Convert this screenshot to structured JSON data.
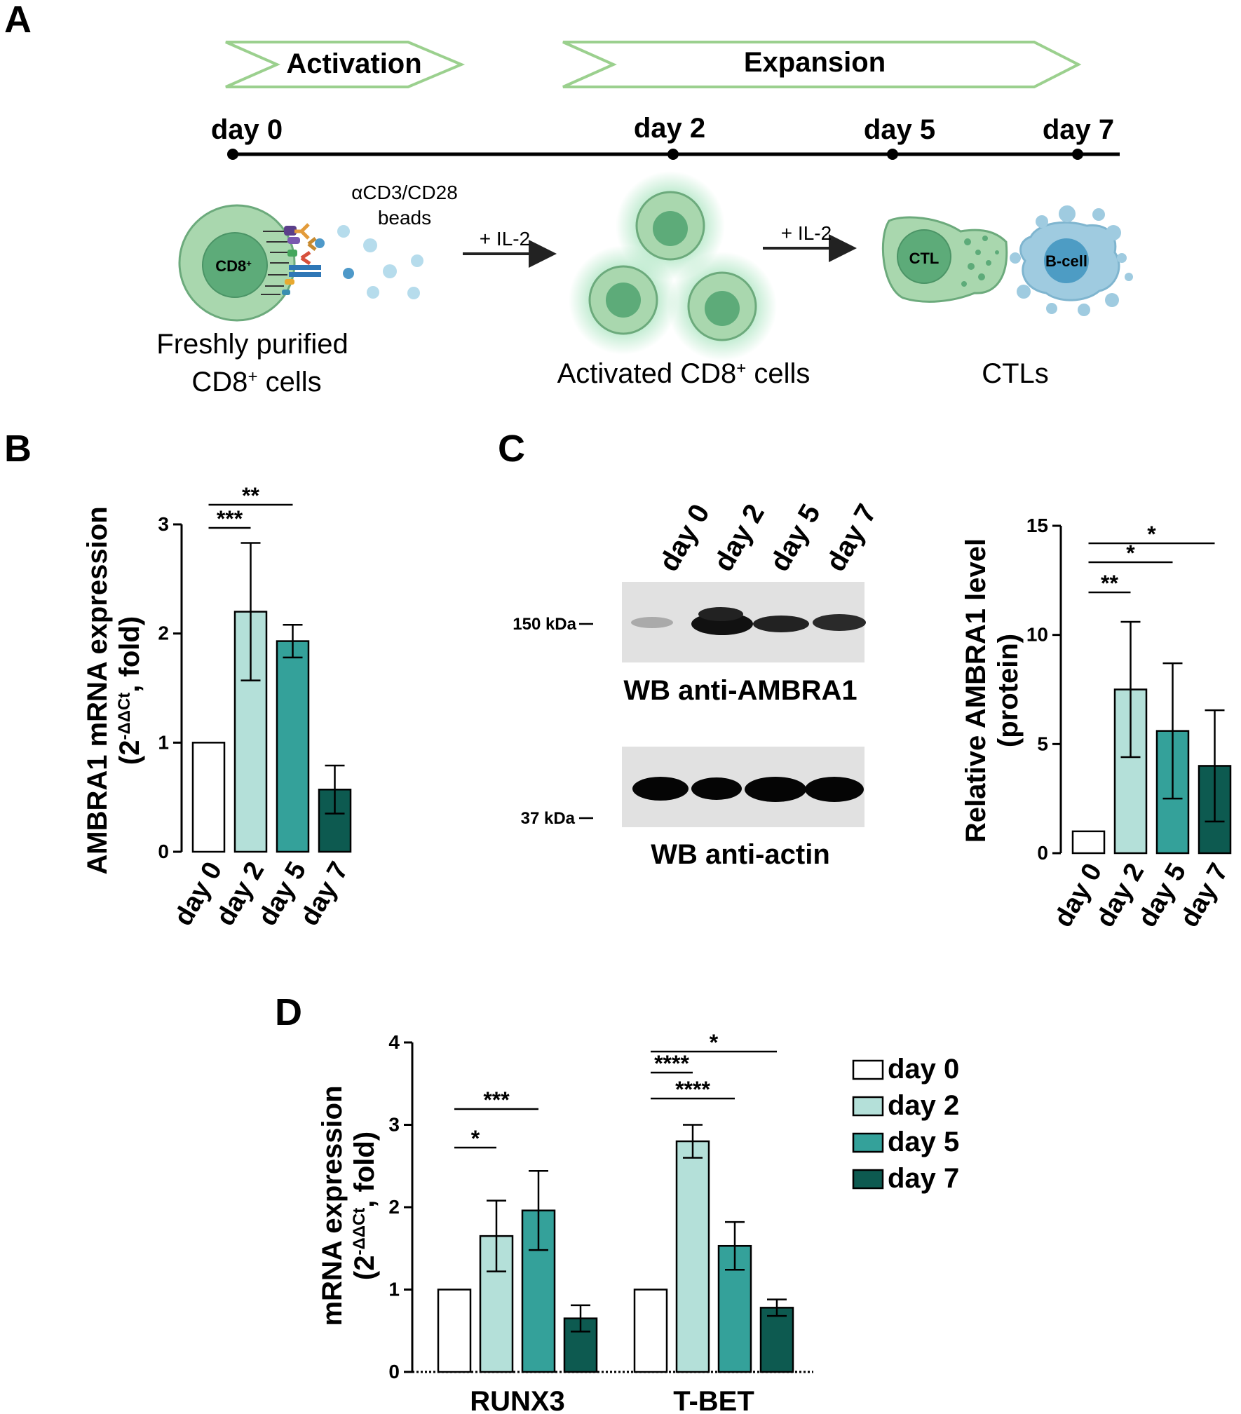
{
  "colors": {
    "day0": "#ffffff",
    "day2": "#b4e0d9",
    "day5": "#34a19a",
    "day7": "#0d5a50",
    "arrow_stroke": "#9bd08e",
    "cell_light": "#a9d7ae",
    "cell_dark": "#5dab79",
    "cell_outline": "#6caa7c",
    "bcell": "#9fcbe0",
    "bcell_dark": "#4d9cc4"
  },
  "panel_a": {
    "letter": "A",
    "phase_activation": "Activation",
    "phase_expansion": "Expansion",
    "days": [
      "day 0",
      "day 2",
      "day 5",
      "day 7"
    ],
    "beads_label": "αCD3/CD28",
    "beads_label2": "beads",
    "cd8_cell_label": "CD8",
    "cd8_sup": "+",
    "il2_1": "+ IL-2",
    "il2_2": "+ IL-2",
    "ctl_cell_label": "CTL",
    "bcell_label": "B-cell",
    "stage1_line1": "Freshly purified",
    "stage1_line2": "CD8",
    "stage1_sup": "+",
    "stage1_line2b": " cells",
    "stage2_text": "Activated CD8",
    "stage2_sup": "+",
    "stage2_text_b": " cells",
    "stage3_text": "CTLs"
  },
  "panel_c_blot": {
    "letter": "C",
    "lanes": [
      "day 0",
      "day 2",
      "day 5",
      "day 7"
    ],
    "marker_top": "150 kDa",
    "marker_bottom": "37 kDa",
    "caption_top": "WB anti-AMBRA1",
    "caption_bottom": "WB anti-actin"
  },
  "chart_data": [
    {
      "panel": "B",
      "type": "bar",
      "categories": [
        "day 0",
        "day 2",
        "day 5",
        "day 7"
      ],
      "values": [
        1.0,
        2.2,
        1.93,
        0.57
      ],
      "errors": [
        0,
        0.63,
        0.15,
        0.22
      ],
      "ylabel_main": "AMBRA1 mRNA expression",
      "ylabel_sub_pre": "(2",
      "ylabel_sub_exp": "-ΔΔCt",
      "ylabel_sub_post": ", fold)",
      "ylim": [
        0,
        3
      ],
      "yticks": [
        "0",
        "1",
        "2",
        "3"
      ],
      "significance": [
        {
          "from": 0,
          "to": 1,
          "label": "***"
        },
        {
          "from": 0,
          "to": 2,
          "label": "**"
        }
      ]
    },
    {
      "panel": "C",
      "type": "bar",
      "categories": [
        "day 0",
        "day 2",
        "day 5",
        "day 7"
      ],
      "values": [
        1.0,
        7.5,
        5.6,
        4.0
      ],
      "errors": [
        0,
        3.1,
        3.1,
        2.55
      ],
      "ylabel_main": "Relative AMBRA1 level",
      "ylabel_sub": "(protein)",
      "ylim": [
        0,
        15
      ],
      "yticks": [
        "0",
        "5",
        "10",
        "15"
      ],
      "significance": [
        {
          "from": 0,
          "to": 1,
          "label": "**"
        },
        {
          "from": 0,
          "to": 2,
          "label": "*"
        },
        {
          "from": 0,
          "to": 3,
          "label": "*"
        }
      ]
    },
    {
      "panel": "D",
      "type": "bar",
      "groups": [
        "RUNX3",
        "T-BET"
      ],
      "series": [
        {
          "name": "day 0",
          "values": [
            1.0,
            1.0
          ],
          "errors": [
            0,
            0
          ]
        },
        {
          "name": "day 2",
          "values": [
            1.65,
            2.8
          ],
          "errors": [
            0.43,
            0.2
          ]
        },
        {
          "name": "day 5",
          "values": [
            1.96,
            1.53
          ],
          "errors": [
            0.48,
            0.29
          ]
        },
        {
          "name": "day 7",
          "values": [
            0.65,
            0.78
          ],
          "errors": [
            0.16,
            0.1
          ]
        }
      ],
      "ylabel_main": "mRNA expression",
      "ylabel_sub_pre": "(2",
      "ylabel_sub_exp": "-ΔΔCt",
      "ylabel_sub_post": ", fold)",
      "ylim": [
        0,
        4
      ],
      "yticks": [
        "0",
        "1",
        "2",
        "3",
        "4"
      ],
      "legend_position": "right",
      "significance": [
        {
          "group": 0,
          "from": 0,
          "to": 1,
          "label": "*"
        },
        {
          "group": 0,
          "from": 0,
          "to": 2,
          "label": "***"
        },
        {
          "group": 1,
          "from": 0,
          "to": 1,
          "label": "****"
        },
        {
          "group": 1,
          "from": 0,
          "to": 2,
          "label": "****"
        },
        {
          "group": 1,
          "from": 0,
          "to": 3,
          "label": "*"
        }
      ]
    }
  ]
}
